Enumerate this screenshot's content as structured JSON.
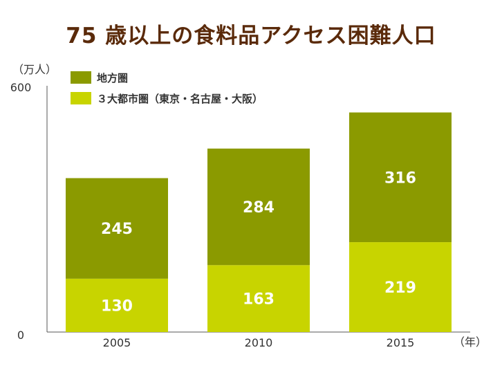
{
  "title": "75 歳以上の食料品アクセス困難人口",
  "chart_data": {
    "type": "bar",
    "stacked": true,
    "title": "75 歳以上の食料品アクセス困難人口",
    "ylabel": "（万人）",
    "xlabel": "（年）",
    "ylim": [
      0,
      600
    ],
    "yticks": [
      "0",
      "600"
    ],
    "categories": [
      "2005",
      "2010",
      "2015"
    ],
    "series": [
      {
        "name": "３大都市圏（東京・名古屋・大阪）",
        "values": [
          130,
          163,
          219
        ],
        "color": "#c8d400"
      },
      {
        "name": "地方圏",
        "values": [
          245,
          284,
          316
        ],
        "color": "#8b9a00"
      }
    ],
    "legend_position": "top-left",
    "grid": false
  }
}
